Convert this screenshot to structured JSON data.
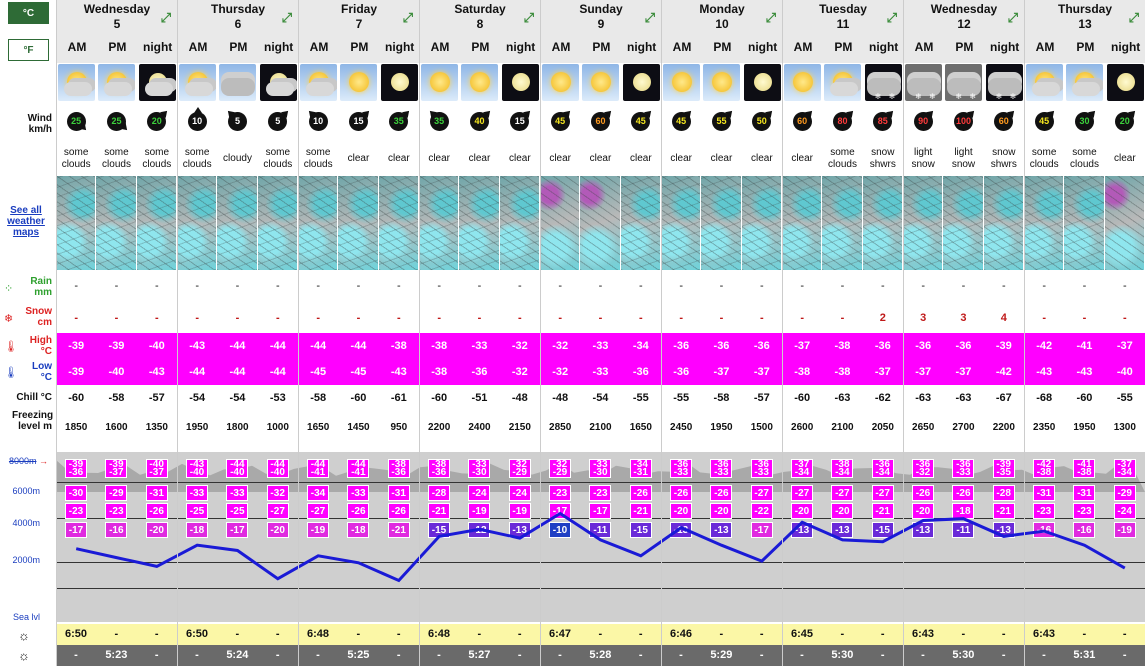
{
  "units": {
    "celsius": "°C",
    "fahrenheit": "°F"
  },
  "labels": {
    "wind": "Wind",
    "wind_unit": "km/h",
    "see_all_maps": "See all weather maps",
    "rain": "Rain",
    "rain_unit": "mm",
    "snow": "Snow",
    "snow_unit": "cm",
    "high": "High",
    "high_unit": "°C",
    "low": "Low",
    "low_unit": "°C",
    "chill": "Chill °C",
    "freezing": "Freezing level m",
    "alt_8000": "8000m",
    "alt_6000": "6000m",
    "alt_4000": "4000m",
    "alt_2000": "2000m",
    "sea_level": "Sea lvl"
  },
  "periods": [
    "AM",
    "PM",
    "night"
  ],
  "days": [
    {
      "name": "Wednesday",
      "date": "5"
    },
    {
      "name": "Thursday",
      "date": "6"
    },
    {
      "name": "Friday",
      "date": "7"
    },
    {
      "name": "Saturday",
      "date": "8"
    },
    {
      "name": "Sunday",
      "date": "9"
    },
    {
      "name": "Monday",
      "date": "10"
    },
    {
      "name": "Tuesday",
      "date": "11"
    },
    {
      "name": "Wednesday",
      "date": "12"
    },
    {
      "name": "Thursday",
      "date": "13"
    }
  ],
  "icons": [
    "partly-cloudy-day",
    "partly-cloudy-day",
    "partly-cloudy-night",
    "partly-cloudy-day",
    "cloudy",
    "partly-cloudy-night",
    "partly-cloudy-day",
    "clear-day",
    "clear-night",
    "clear-day",
    "clear-day",
    "clear-night",
    "clear-day",
    "clear-day",
    "clear-night",
    "clear-day",
    "clear-day",
    "clear-night",
    "clear-day",
    "partly-cloudy-day",
    "snow-showers-night",
    "light-snow",
    "light-snow",
    "snow-showers-night",
    "partly-cloudy-day",
    "partly-cloudy-day",
    "clear-night"
  ],
  "wind": [
    {
      "v": "25",
      "c": "#3cd23c",
      "d": 135
    },
    {
      "v": "25",
      "c": "#3cd23c",
      "d": 135
    },
    {
      "v": "20",
      "c": "#3cd23c",
      "d": 45
    },
    {
      "v": "10",
      "c": "#ffffff",
      "d": 0
    },
    {
      "v": "5",
      "c": "#ffffff",
      "d": 315
    },
    {
      "v": "5",
      "c": "#ffffff",
      "d": 45
    },
    {
      "v": "10",
      "c": "#ffffff",
      "d": 315
    },
    {
      "v": "15",
      "c": "#ffffff",
      "d": 45
    },
    {
      "v": "35",
      "c": "#3cd23c",
      "d": 45
    },
    {
      "v": "35",
      "c": "#3cd23c",
      "d": 315
    },
    {
      "v": "40",
      "c": "#f5e61e",
      "d": 45
    },
    {
      "v": "15",
      "c": "#ffffff",
      "d": 45
    },
    {
      "v": "45",
      "c": "#f5e61e",
      "d": 45
    },
    {
      "v": "60",
      "c": "#ff9a1e",
      "d": 45
    },
    {
      "v": "45",
      "c": "#f5e61e",
      "d": 45
    },
    {
      "v": "45",
      "c": "#f5e61e",
      "d": 45
    },
    {
      "v": "55",
      "c": "#f5e61e",
      "d": 45
    },
    {
      "v": "50",
      "c": "#f5e61e",
      "d": 45
    },
    {
      "v": "60",
      "c": "#ff9a1e",
      "d": 45
    },
    {
      "v": "80",
      "c": "#ff3b3b",
      "d": 45
    },
    {
      "v": "85",
      "c": "#ff3b3b",
      "d": 45
    },
    {
      "v": "90",
      "c": "#ff3b3b",
      "d": 45
    },
    {
      "v": "100",
      "c": "#ff3b3b",
      "d": 45
    },
    {
      "v": "60",
      "c": "#ff9a1e",
      "d": 45
    },
    {
      "v": "45",
      "c": "#f5e61e",
      "d": 45
    },
    {
      "v": "30",
      "c": "#3cd23c",
      "d": 45
    },
    {
      "v": "20",
      "c": "#3cd23c",
      "d": 45
    }
  ],
  "weather_text": [
    "some clouds",
    "some clouds",
    "some clouds",
    "some clouds",
    "cloudy",
    "some clouds",
    "some clouds",
    "clear",
    "clear",
    "clear",
    "clear",
    "clear",
    "clear",
    "clear",
    "clear",
    "clear",
    "clear",
    "clear",
    "clear",
    "some clouds",
    "snow shwrs",
    "light snow",
    "light snow",
    "snow shwrs",
    "some clouds",
    "some clouds",
    "clear"
  ],
  "rain": [
    "-",
    "-",
    "-",
    "-",
    "-",
    "-",
    "-",
    "-",
    "-",
    "-",
    "-",
    "-",
    "-",
    "-",
    "-",
    "-",
    "-",
    "-",
    "-",
    "-",
    "-",
    "-",
    "-",
    "-",
    "-",
    "-",
    "-"
  ],
  "snow": [
    "-",
    "-",
    "-",
    "-",
    "-",
    "-",
    "-",
    "-",
    "-",
    "-",
    "-",
    "-",
    "-",
    "-",
    "-",
    "-",
    "-",
    "-",
    "-",
    "-",
    "2",
    "3",
    "3",
    "4",
    "-",
    "-",
    "-"
  ],
  "high": [
    "-39",
    "-39",
    "-40",
    "-43",
    "-44",
    "-44",
    "-44",
    "-44",
    "-38",
    "-38",
    "-33",
    "-32",
    "-32",
    "-33",
    "-34",
    "-36",
    "-36",
    "-36",
    "-37",
    "-38",
    "-36",
    "-36",
    "-36",
    "-39",
    "-42",
    "-41",
    "-37"
  ],
  "low": [
    "-39",
    "-40",
    "-43",
    "-44",
    "-44",
    "-44",
    "-45",
    "-45",
    "-43",
    "-38",
    "-36",
    "-32",
    "-32",
    "-33",
    "-36",
    "-36",
    "-37",
    "-37",
    "-38",
    "-38",
    "-37",
    "-37",
    "-37",
    "-42",
    "-43",
    "-43",
    "-40"
  ],
  "chill": [
    "-60",
    "-58",
    "-57",
    "-54",
    "-54",
    "-53",
    "-58",
    "-60",
    "-61",
    "-60",
    "-51",
    "-48",
    "-48",
    "-54",
    "-55",
    "-55",
    "-58",
    "-57",
    "-60",
    "-63",
    "-62",
    "-63",
    "-63",
    "-67",
    "-68",
    "-60",
    "-55"
  ],
  "freezing": [
    "1850",
    "1600",
    "1350",
    "1950",
    "1800",
    "1000",
    "1650",
    "1450",
    "950",
    "2200",
    "2400",
    "2150",
    "2850",
    "2100",
    "1650",
    "2450",
    "1950",
    "1500",
    "2600",
    "2100",
    "2050",
    "2650",
    "2700",
    "2200",
    "2350",
    "1950",
    "1300"
  ],
  "alt_temps": {
    "r8000a": [
      "-39",
      "-39",
      "-40",
      "-43",
      "-44",
      "-44",
      "-44",
      "-44",
      "-38",
      "-38",
      "-33",
      "-32",
      "-32",
      "-33",
      "-34",
      "-36",
      "-36",
      "-36",
      "-37",
      "-38",
      "-36",
      "-36",
      "-36",
      "-39",
      "-42",
      "-41",
      "-37"
    ],
    "r8000b": [
      "-36",
      "-37",
      "-37",
      "-40",
      "-40",
      "-40",
      "-41",
      "-41",
      "-36",
      "-36",
      "-30",
      "-29",
      "-29",
      "-30",
      "-31",
      "-33",
      "-33",
      "-33",
      "-34",
      "-34",
      "-34",
      "-32",
      "-33",
      "-35",
      "-38",
      "-38",
      "-34"
    ],
    "r6000": [
      "-30",
      "-29",
      "-31",
      "-33",
      "-33",
      "-32",
      "-34",
      "-33",
      "-31",
      "-28",
      "-24",
      "-24",
      "-23",
      "-23",
      "-26",
      "-26",
      "-26",
      "-27",
      "-27",
      "-27",
      "-27",
      "-26",
      "-26",
      "-28",
      "-31",
      "-31",
      "-29"
    ],
    "r5000": [
      "-23",
      "-23",
      "-26",
      "-25",
      "-25",
      "-27",
      "-27",
      "-26",
      "-26",
      "-21",
      "-19",
      "-19",
      "-17",
      "-17",
      "-21",
      "-20",
      "-20",
      "-22",
      "-20",
      "-20",
      "-21",
      "-20",
      "-18",
      "-21",
      "-23",
      "-23",
      "-24"
    ],
    "r4000": [
      "-17",
      "-16",
      "-20",
      "-18",
      "-17",
      "-20",
      "-19",
      "-18",
      "-21",
      "-15",
      "-12",
      "-13",
      "-10",
      "-11",
      "-15",
      "-13",
      "-13",
      "-17",
      "-13",
      "-13",
      "-15",
      "-13",
      "-11",
      "-13",
      "-16",
      "-16",
      "-19"
    ]
  },
  "freezing_line": [
    1850,
    1600,
    1350,
    1950,
    1800,
    1000,
    1650,
    1450,
    950,
    2200,
    2400,
    2150,
    2850,
    2100,
    1650,
    2450,
    1950,
    1500,
    2600,
    2100,
    2050,
    2650,
    2700,
    2200,
    2350,
    1950,
    1300
  ],
  "sunrise": [
    "6:50",
    "6:50",
    "6:48",
    "6:48",
    "6:47",
    "6:46",
    "6:45",
    "6:43",
    "6:43"
  ],
  "sunset": [
    "5:23",
    "5:24",
    "5:25",
    "5:27",
    "5:28",
    "5:29",
    "5:30",
    "5:30",
    "5:31"
  ],
  "dash": "-",
  "colors": {
    "magenta": "#ff00ff",
    "green": "#2e6b36",
    "freezing_line": "#1a1ad6"
  }
}
